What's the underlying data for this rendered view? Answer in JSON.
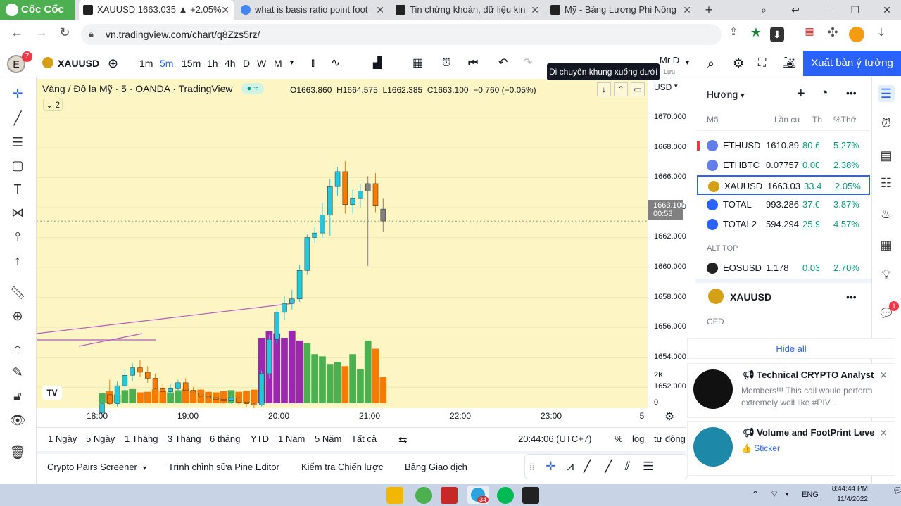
{
  "browser": {
    "brand": "Cốc Cốc",
    "tabs": [
      {
        "title": "XAUUSD 1663.035 ▲ +2.05%",
        "active": true
      },
      {
        "title": "what is basis ratio point foot"
      },
      {
        "title": "Tin chứng khoán, dữ liệu kin"
      },
      {
        "title": "Mỹ - Bảng Lương Phi Nông"
      }
    ],
    "new_tab": "+",
    "url": "vn.tradingview.com/chart/q8Zzs5rz/"
  },
  "toolbar": {
    "avatar_letter": "E",
    "avatar_badge": "7",
    "symbol": "XAUUSD",
    "intervals": [
      "1m",
      "5m",
      "15m",
      "1h",
      "4h",
      "D",
      "W",
      "M"
    ],
    "selected_interval": "5m",
    "layout_name": "Mr D",
    "layout_sub": "Lưu",
    "publish": "Xuất bản ý tưởng",
    "tooltip": "Di chuyển khung xuống dưới"
  },
  "legend": {
    "title": "Vàng / Đô la Mỹ · 5 · OANDA · TradingView",
    "indicators_count": "2",
    "o": "O1663.860",
    "h": "H1664.575",
    "l": "L1662.385",
    "c": "C1663.100",
    "change": "−0.760 (−0.05%)"
  },
  "price_axis": {
    "currency": "USD",
    "current_price": "1663.100",
    "countdown": "00:53",
    "volume_label": "2K",
    "volume_zero": "0"
  },
  "chart_data": {
    "type": "candlestick",
    "symbol": "XAUUSD",
    "interval": "5",
    "x_ticks": [
      "18:00",
      "19:00",
      "20:00",
      "21:00",
      "22:00",
      "23:00",
      "5"
    ],
    "y_ticks": [
      1652,
      1654,
      1656,
      1658,
      1660,
      1662,
      1664,
      1666,
      1668,
      1670
    ],
    "y_tick_labels": [
      "1652.000",
      "1654.000",
      "1656.000",
      "1658.000",
      "1660.000",
      "1662.000",
      "1664.000",
      "1666.000",
      "1668.000",
      "1670.000"
    ],
    "ylim": [
      1650.6,
      1672.6
    ],
    "current_price": 1663.1,
    "candles": [
      {
        "o": 1650.3,
        "h": 1651.2,
        "l": 1650.0,
        "c": 1650.9
      },
      {
        "o": 1651.5,
        "h": 1652.5,
        "l": 1650.8,
        "c": 1650.9
      },
      {
        "o": 1650.9,
        "h": 1652.4,
        "l": 1650.7,
        "c": 1652.1
      },
      {
        "o": 1652.1,
        "h": 1653.2,
        "l": 1651.8,
        "c": 1652.8
      },
      {
        "o": 1652.8,
        "h": 1653.6,
        "l": 1652.4,
        "c": 1653.3
      },
      {
        "o": 1653.3,
        "h": 1653.8,
        "l": 1652.7,
        "c": 1653.0
      },
      {
        "o": 1653.0,
        "h": 1653.4,
        "l": 1652.3,
        "c": 1652.6
      },
      {
        "o": 1652.6,
        "h": 1652.9,
        "l": 1651.6,
        "c": 1651.9
      },
      {
        "o": 1651.9,
        "h": 1652.2,
        "l": 1651.3,
        "c": 1651.7
      },
      {
        "o": 1651.7,
        "h": 1652.2,
        "l": 1651.4,
        "c": 1651.9
      },
      {
        "o": 1651.9,
        "h": 1652.5,
        "l": 1651.7,
        "c": 1652.3
      },
      {
        "o": 1652.3,
        "h": 1652.6,
        "l": 1651.6,
        "c": 1651.8
      },
      {
        "o": 1651.8,
        "h": 1652.0,
        "l": 1651.3,
        "c": 1651.6
      },
      {
        "o": 1651.6,
        "h": 1651.9,
        "l": 1651.2,
        "c": 1651.4
      },
      {
        "o": 1651.4,
        "h": 1651.7,
        "l": 1651.1,
        "c": 1651.3
      },
      {
        "o": 1651.3,
        "h": 1651.6,
        "l": 1651.0,
        "c": 1651.2
      },
      {
        "o": 1651.2,
        "h": 1651.4,
        "l": 1650.9,
        "c": 1651.1
      },
      {
        "o": 1651.1,
        "h": 1651.5,
        "l": 1650.9,
        "c": 1651.3
      },
      {
        "o": 1651.3,
        "h": 1651.6,
        "l": 1650.8,
        "c": 1651.0
      },
      {
        "o": 1651.0,
        "h": 1651.3,
        "l": 1650.7,
        "c": 1650.9
      },
      {
        "o": 1650.9,
        "h": 1651.2,
        "l": 1650.6,
        "c": 1650.8
      },
      {
        "o": 1650.8,
        "h": 1653.1,
        "l": 1650.7,
        "c": 1652.9
      },
      {
        "o": 1652.9,
        "h": 1655.5,
        "l": 1652.6,
        "c": 1655.2
      },
      {
        "o": 1655.2,
        "h": 1657.2,
        "l": 1654.9,
        "c": 1657.0
      },
      {
        "o": 1657.0,
        "h": 1658.1,
        "l": 1656.5,
        "c": 1657.6
      },
      {
        "o": 1657.6,
        "h": 1658.5,
        "l": 1657.2,
        "c": 1657.9
      },
      {
        "o": 1657.9,
        "h": 1660.2,
        "l": 1657.7,
        "c": 1659.8
      },
      {
        "o": 1659.8,
        "h": 1662.2,
        "l": 1659.5,
        "c": 1662.0
      },
      {
        "o": 1662.0,
        "h": 1662.7,
        "l": 1661.6,
        "c": 1662.3
      },
      {
        "o": 1662.3,
        "h": 1664.3,
        "l": 1662.0,
        "c": 1663.5
      },
      {
        "o": 1663.5,
        "h": 1665.9,
        "l": 1662.1,
        "c": 1665.4
      },
      {
        "o": 1665.4,
        "h": 1666.7,
        "l": 1664.8,
        "c": 1666.4
      },
      {
        "o": 1666.4,
        "h": 1667.1,
        "l": 1663.6,
        "c": 1664.2
      },
      {
        "o": 1664.2,
        "h": 1665.2,
        "l": 1663.6,
        "c": 1664.6
      },
      {
        "o": 1664.6,
        "h": 1665.6,
        "l": 1664.0,
        "c": 1665.1
      },
      {
        "o": 1665.1,
        "h": 1666.1,
        "l": 1660.1,
        "c": 1665.6
      },
      {
        "o": 1665.6,
        "h": 1666.3,
        "l": 1663.7,
        "c": 1664.1
      },
      {
        "o": 1663.9,
        "h": 1664.6,
        "l": 1662.4,
        "c": 1663.1
      }
    ],
    "volume": [
      180,
      220,
      160,
      240,
      260,
      200,
      210,
      260,
      220,
      200,
      240,
      260,
      230,
      250,
      210,
      200,
      220,
      240,
      210,
      230,
      250,
      1200,
      1320,
      1280,
      1200,
      1330,
      1150,
      1100,
      900,
      860,
      720,
      760,
      680,
      900,
      620,
      1150,
      1000,
      480
    ],
    "volume_max": 2000
  },
  "time_axis": {
    "clock": "20:44:06 (UTC+7)"
  },
  "range_bar": {
    "ranges": [
      "1 Ngày",
      "5 Ngày",
      "1 Tháng",
      "3 Tháng",
      "6 tháng",
      "YTD",
      "1 Năm",
      "5 Năm",
      "Tất cả"
    ],
    "percent": "%",
    "log": "log",
    "auto": "tự động"
  },
  "panels": [
    "Crypto Pairs Screener",
    "Trình chỉnh sửa Pine Editor",
    "Kiểm tra Chiến lược",
    "Bảng Giao dịch"
  ],
  "watchlist": {
    "title": "Hương",
    "columns": {
      "symbol": "Mã",
      "last": "Lần cu",
      "chg": "Th",
      "pct": "%Thớ"
    },
    "rows": [
      {
        "sym": "ETHUSD",
        "last": "1610.89",
        "chg": "80.6",
        "pct": "5.27%",
        "color": "#627eea"
      },
      {
        "sym": "ETHBTC",
        "last": "0.07757",
        "chg": "0.00",
        "pct": "2.38%",
        "color": "#627eea"
      },
      {
        "sym": "XAUUSD",
        "last": "1663.03",
        "chg": "33.4",
        "pct": "2.05%",
        "color": "#d4a017"
      },
      {
        "sym": "TOTAL",
        "last": "993.286",
        "chg": "37.0",
        "pct": "3.87%",
        "color": "#2962ff"
      },
      {
        "sym": "TOTAL2",
        "last": "594.294",
        "chg": "25.9",
        "pct": "4.57%",
        "color": "#2962ff"
      }
    ],
    "section": "ALT TOP",
    "alt_rows": [
      {
        "sym": "EOSUSD",
        "last": "1.178",
        "chg": "0.03",
        "pct": "2.70%",
        "color": "#222222"
      }
    ]
  },
  "detail": {
    "symbol": "XAUUSD",
    "type": "CFD"
  },
  "notifications": {
    "hide_all": "Hide all",
    "items": [
      {
        "title": "Technical CRYPTO Analyst ...",
        "body": "Members!!! This call would perform extremely well like #PIV..."
      },
      {
        "title": "Volume and FootPrint Level...",
        "body": "Sticker"
      }
    ]
  },
  "rightstrip_badge": "1",
  "taskbar": {
    "lang": "ENG",
    "time": "8:44:44 PM",
    "date": "11/4/2022",
    "badge": "34"
  },
  "colors": {
    "up": "#26c6da",
    "down": "#f57c00",
    "neutral": "#808080",
    "chart_bg": "#fdf6c4",
    "accent": "#2962ff",
    "trend": "#b35cc6"
  }
}
